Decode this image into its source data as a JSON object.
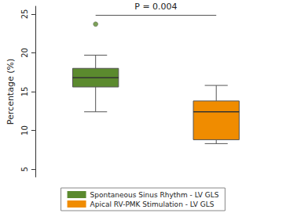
{
  "chart_data": {
    "type": "boxplot",
    "y_label": "Percentage (%)",
    "categories": [
      null,
      null
    ],
    "series": [
      {
        "name": "Spontaneous Sinus Rhythm - LV GLS",
        "color": "#5b8a2e",
        "min": 12.4,
        "q1": 15.6,
        "median": 16.8,
        "q3": 18.0,
        "max": 19.7,
        "outliers": [
          23.7
        ]
      },
      {
        "name": "Apical RV-PMK Stimulation - LV GLS",
        "color": "#f08c00",
        "min": 8.3,
        "q1": 8.8,
        "median": 12.4,
        "q3": 13.8,
        "max": 15.8,
        "outliers": []
      }
    ],
    "ylim": [
      4,
      26
    ],
    "yticks": [
      5,
      10,
      15,
      20,
      25
    ],
    "grid": false,
    "legend": "bottom",
    "tick_labels": "y",
    "annotation": {
      "text": "P = 0.004",
      "y": 24.9
    }
  }
}
